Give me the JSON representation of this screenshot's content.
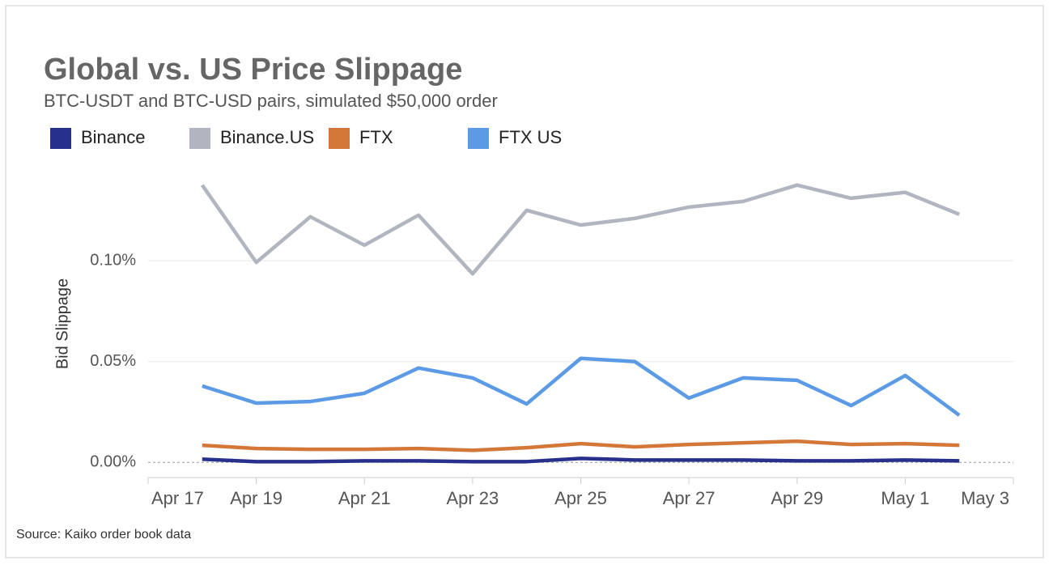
{
  "chart_data": {
    "type": "line",
    "title": "Global vs. US Price Slippage",
    "subtitle": "BTC-USDT and BTC-USD pairs, simulated $50,000 order",
    "y_label": "Bid Slippage",
    "source": "Source: Kaiko order book data",
    "categories": [
      "Apr 17",
      null,
      "Apr 19",
      null,
      "Apr 21",
      null,
      "Apr 23",
      null,
      "Apr 25",
      null,
      "Apr 27",
      null,
      "Apr 29",
      null,
      "May 1",
      null,
      "May 3"
    ],
    "series": [
      {
        "name": "Binance",
        "color": "#27318b",
        "values": [
          null,
          0.0016,
          0.0004,
          0.0004,
          0.0008,
          0.0008,
          0.0004,
          0.0004,
          0.002,
          0.0012,
          0.0012,
          0.0012,
          0.0008,
          0.0008,
          0.0012,
          0.0008,
          null
        ]
      },
      {
        "name": "Binance.US",
        "color": "#b0b5bf",
        "values": [
          null,
          0.1375,
          0.0992,
          0.1218,
          0.1077,
          0.1226,
          0.0935,
          0.125,
          0.1177,
          0.121,
          0.1266,
          0.1294,
          0.1375,
          0.131,
          0.1339,
          0.123,
          null
        ]
      },
      {
        "name": "FTX",
        "color": "#d4783a",
        "values": [
          null,
          0.0085,
          0.0069,
          0.0065,
          0.0065,
          0.0069,
          0.006,
          0.0073,
          0.0093,
          0.0077,
          0.0089,
          0.0097,
          0.0105,
          0.0089,
          0.0093,
          0.0085,
          null
        ]
      },
      {
        "name": "FTX US",
        "color": "#5b9be6",
        "values": [
          null,
          0.0379,
          0.0294,
          0.0302,
          0.0343,
          0.0468,
          0.0419,
          0.029,
          0.0516,
          0.05,
          0.0319,
          0.0419,
          0.0407,
          0.0282,
          0.0431,
          0.0234,
          null
        ]
      }
    ],
    "ylim": [
      -0.0075,
      0.145
    ],
    "yticks": [
      {
        "value": 0,
        "label": "0.00%"
      },
      {
        "value": 0.05,
        "label": "0.05%"
      },
      {
        "value": 0.1,
        "label": "0.10%"
      }
    ],
    "grid": true
  }
}
